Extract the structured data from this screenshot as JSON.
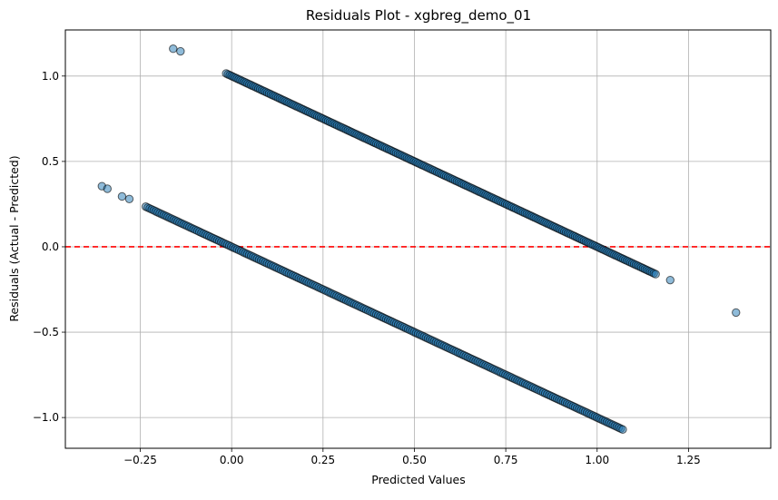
{
  "chart_data": {
    "type": "scatter",
    "title": "Residuals Plot - xgbreg_demo_01",
    "xlabel": "Predicted Values",
    "ylabel": "Residuals (Actual - Predicted)",
    "xlim": [
      -0.455,
      1.475
    ],
    "ylim": [
      -1.18,
      1.27
    ],
    "xticks": [
      -0.25,
      0.0,
      0.25,
      0.5,
      0.75,
      1.0,
      1.25
    ],
    "xtick_labels": [
      "−0.25",
      "0.00",
      "0.25",
      "0.50",
      "0.75",
      "1.00",
      "1.25"
    ],
    "yticks": [
      -1.0,
      -0.5,
      0.0,
      0.5,
      1.0
    ],
    "ytick_labels": [
      "−1.0",
      "−0.5",
      "0.0",
      "0.5",
      "1.0"
    ],
    "grid": true,
    "reference_line": {
      "y": 0.0,
      "style": "dashed",
      "color": "#ff0000"
    },
    "colors": {
      "points": "#1f77b4",
      "point_edge": "#000000"
    },
    "series": [
      {
        "band": "lower (actual = 0)",
        "relation": "residual = -predicted",
        "x_range": [
          -0.235,
          1.07
        ],
        "extra_points": [
          [
            -0.355,
            0.355
          ],
          [
            -0.34,
            0.34
          ],
          [
            -0.3,
            0.295
          ],
          [
            -0.28,
            0.28
          ]
        ]
      },
      {
        "band": "upper (actual = 1)",
        "relation": "residual = 1 - predicted",
        "x_range": [
          -0.015,
          1.16
        ],
        "extra_points": [
          [
            -0.16,
            1.16
          ],
          [
            -0.14,
            1.145
          ],
          [
            1.2,
            -0.195
          ],
          [
            1.38,
            -0.385
          ]
        ]
      }
    ]
  }
}
